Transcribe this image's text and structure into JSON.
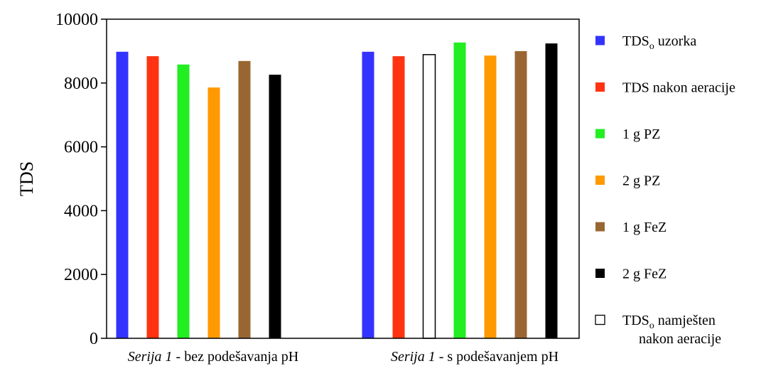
{
  "chart_data": {
    "type": "bar",
    "ylabel": "TDS",
    "xlabel": "",
    "ylim": [
      0,
      10000
    ],
    "yticks": [
      0,
      2000,
      4000,
      6000,
      8000,
      10000
    ],
    "grid": false,
    "legend_position": "right",
    "groups": [
      {
        "label_italic": "Serija 1",
        "label_rest": " - bez podešavanja pH",
        "bars": [
          {
            "series": "tds0",
            "value": 8980
          },
          {
            "series": "aer",
            "value": 8840
          },
          {
            "series": "pz1",
            "value": 8580
          },
          {
            "series": "pz2",
            "value": 7860
          },
          {
            "series": "fez1",
            "value": 8690
          },
          {
            "series": "fez2",
            "value": 8260
          }
        ]
      },
      {
        "label_italic": "Serija 1",
        "label_rest": " - s podešavanjem pH",
        "bars": [
          {
            "series": "tds0",
            "value": 8980
          },
          {
            "series": "aer",
            "value": 8840
          },
          {
            "series": "adj",
            "value": 8890
          },
          {
            "series": "pz1",
            "value": 9270
          },
          {
            "series": "pz2",
            "value": 8860
          },
          {
            "series": "fez1",
            "value": 9000
          },
          {
            "series": "fez2",
            "value": 9240
          }
        ]
      }
    ],
    "series": [
      {
        "id": "tds0",
        "main": "TDS",
        "sub": "o",
        "rest": " uzorka",
        "color": "#3333ff",
        "fill": true
      },
      {
        "id": "aer",
        "main": "TDS nakon aeracije",
        "sub": "",
        "rest": "",
        "color": "#ff3311",
        "fill": true
      },
      {
        "id": "pz1",
        "main": "1 g PZ",
        "sub": "",
        "rest": "",
        "color": "#22ee22",
        "fill": true
      },
      {
        "id": "pz2",
        "main": "2 g PZ",
        "sub": "",
        "rest": "",
        "color": "#ff9900",
        "fill": true
      },
      {
        "id": "fez1",
        "main": "1 g FeZ",
        "sub": "",
        "rest": "",
        "color": "#996633",
        "fill": true
      },
      {
        "id": "fez2",
        "main": "2 g FeZ",
        "sub": "",
        "rest": "",
        "color": "#000000",
        "fill": true
      },
      {
        "id": "adj",
        "main": "TDS",
        "sub": "o",
        "rest": " namješten",
        "line2": "nakon aeracije",
        "color": "#000000",
        "fill": false
      }
    ]
  }
}
